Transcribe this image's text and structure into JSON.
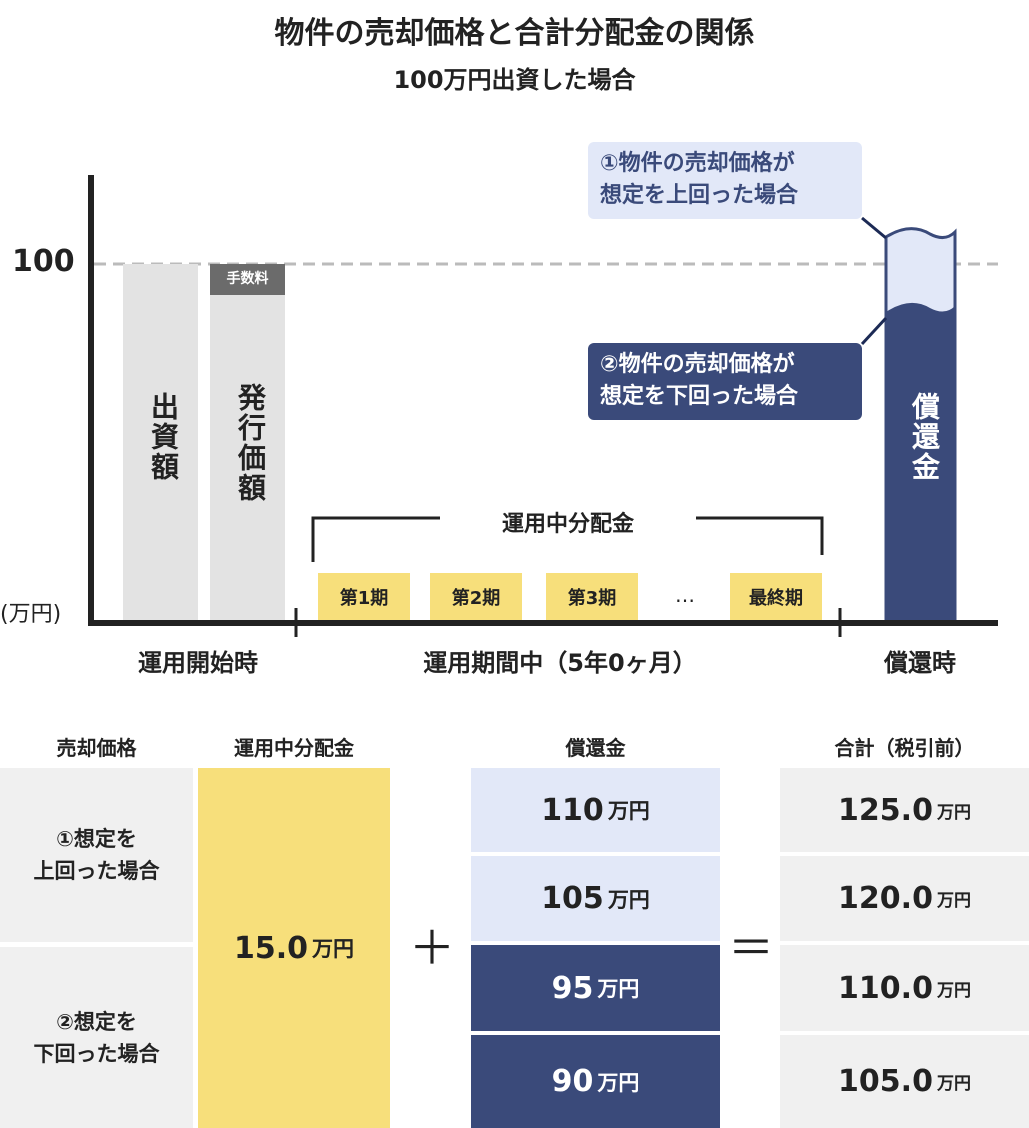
{
  "title": "物件の売却価格と合計分配金の関係",
  "subtitle": "100万円出資した場合",
  "chart": {
    "y_tick": "100",
    "y_unit": "(万円)",
    "bar_investment": "出資額",
    "bar_issue_price": "発行価額",
    "fee_label": "手数料",
    "distribution_bracket": "運用中分配金",
    "periods": [
      "第1期",
      "第2期",
      "第3期",
      "…",
      "最終期"
    ],
    "redemption_bar": "償還金",
    "callout_above": "①物件の売却価格が想定を上回った場合",
    "callout_above_lines": [
      "①物件の売却価格が",
      "想定を上回った場合"
    ],
    "callout_below_lines": [
      "②物件の売却価格が",
      "想定を下回った場合"
    ],
    "x_labels": [
      "運用開始時",
      "運用期間中（5年0ヶ月）",
      "償還時"
    ],
    "colors": {
      "light_blue": "#e2e8f8",
      "navy": "#3a4a7a",
      "yellow": "#f7df7b",
      "gray": "#e3e3e3"
    }
  },
  "table": {
    "headers": [
      "売却価格",
      "運用中分配金",
      "償還金",
      "合計（税引前）"
    ],
    "cases": [
      [
        "①想定を",
        "上回った場合"
      ],
      [
        "②想定を",
        "下回った場合"
      ]
    ],
    "distribution": {
      "value": "15.0",
      "unit": "万円"
    },
    "plus": "＋",
    "equals": "＝",
    "redemption": [
      {
        "value": "110",
        "unit": "万円"
      },
      {
        "value": "105",
        "unit": "万円"
      },
      {
        "value": "95",
        "unit": "万円"
      },
      {
        "value": "90",
        "unit": "万円"
      }
    ],
    "totals": [
      {
        "value": "125.0",
        "unit": "万円"
      },
      {
        "value": "120.0",
        "unit": "万円"
      },
      {
        "value": "110.0",
        "unit": "万円"
      },
      {
        "value": "105.0",
        "unit": "万円"
      }
    ]
  }
}
